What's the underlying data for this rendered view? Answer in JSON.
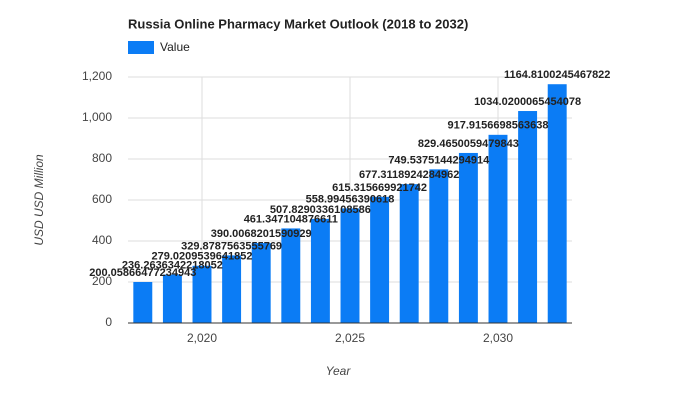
{
  "chart_data": {
    "type": "bar",
    "title": "Russia Online Pharmacy Market Outlook (2018 to 2032)",
    "x_label": "Year",
    "y_label": "USD USD Million",
    "x": [
      2018,
      2019,
      2020,
      2021,
      2022,
      2023,
      2024,
      2025,
      2026,
      2027,
      2028,
      2029,
      2030,
      2031,
      2032
    ],
    "series": [
      {
        "name": "Value",
        "color": "#0b7cf5",
        "values": [
          200.05866477234943,
          236.2636342218052,
          279.0209539641852,
          329.8787563555769,
          390.0068201590929,
          461.347104876611,
          507.8290336108586,
          558.99456390618,
          615.315669921742,
          677.3118924284962,
          749.5375144294914,
          829.4650059479843,
          917.9156698563638,
          1034.0200065454078,
          1164.8100245467822
        ]
      }
    ],
    "xlim": [
      2017.5,
      2032.5
    ],
    "xticks": [
      {
        "value": 2020,
        "label": "2,020"
      },
      {
        "value": 2025,
        "label": "2,025"
      },
      {
        "value": 2030,
        "label": "2,030"
      }
    ],
    "ylim": [
      0,
      1200
    ],
    "yticks": [
      0,
      200,
      400,
      600,
      800,
      {
        "value": 1000,
        "label": "1,000"
      },
      {
        "value": 1200,
        "label": "1,200"
      }
    ],
    "grid": true
  }
}
